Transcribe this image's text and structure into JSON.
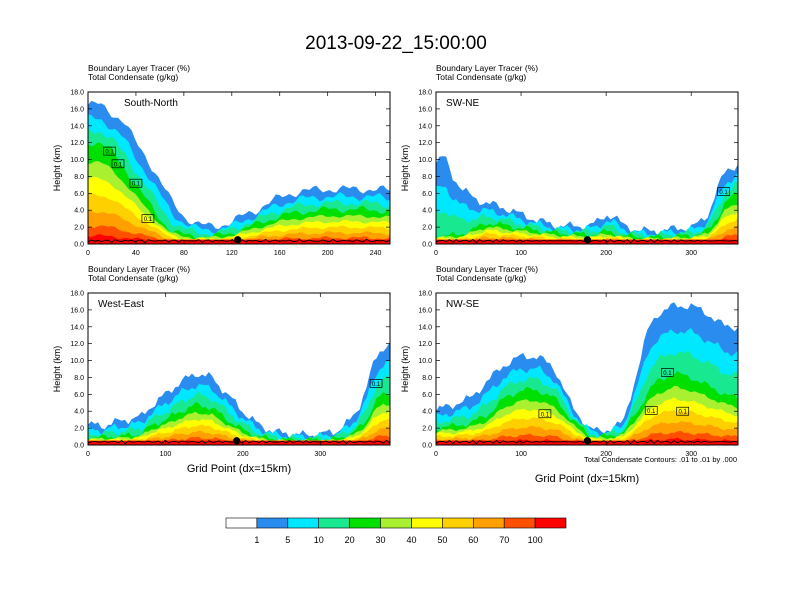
{
  "main_title": "2013-09-22_15:00:00",
  "panel_header_line1": "Boundary Layer Tracer   (%)",
  "panel_header_line2": "Total Condensate   (g/kg)",
  "y_axis_label": "Height (km)",
  "x_axis_label": "Grid Point (dx=15km)",
  "contour_note": "Total Condensate Contours: .01 to .01 by .000",
  "colors": {
    "white": "#ffffff",
    "blue": "#2b8cf0",
    "cyan": "#00e8ff",
    "seagreen": "#18e890",
    "green": "#00e000",
    "lime": "#a8f030",
    "yellow": "#ffff00",
    "gold": "#ffd000",
    "orange": "#ffa000",
    "redorange": "#ff5000",
    "red": "#ff0000"
  },
  "chart_data": [
    {
      "type": "heatmap",
      "panel_label": "South-North",
      "x_ticks": [
        "0",
        "40",
        "80",
        "120",
        "160",
        "200",
        "240"
      ],
      "x_tick_values": [
        0,
        40,
        80,
        120,
        160,
        200,
        240
      ],
      "xlim": [
        0,
        252
      ],
      "y_ticks": [
        "0.0",
        "2.0",
        "4.0",
        "6.0",
        "8.0",
        "10.0",
        "12.0",
        "14.0",
        "16.0",
        "18.0"
      ],
      "ylim": [
        0,
        18
      ],
      "marker_x": 125,
      "contour_labels": [
        {
          "text": "0.1",
          "x": 18,
          "y": 11
        },
        {
          "text": "0.1",
          "x": 25,
          "y": 9.5
        },
        {
          "text": "0.1",
          "x": 40,
          "y": 7.2
        },
        {
          "text": "0.1",
          "x": 50,
          "y": 3
        }
      ],
      "tracer_profile": {
        "x": [
          0,
          10,
          20,
          30,
          40,
          50,
          60,
          70,
          80,
          90,
          100,
          110,
          120,
          130,
          140,
          150,
          160,
          170,
          180,
          190,
          200,
          210,
          220,
          230,
          240,
          252
        ],
        "top": [
          16.5,
          16.5,
          15.5,
          14.5,
          12,
          10,
          7.5,
          5,
          3.3,
          2.4,
          2.1,
          2.2,
          2.6,
          3.4,
          4,
          4.8,
          5.5,
          6,
          6.3,
          6.4,
          6.5,
          6.5,
          6.5,
          6.5,
          6.5,
          6.3
        ],
        "core": [
          12,
          12,
          11,
          9,
          7,
          5,
          3,
          1.5,
          1.1,
          0.9,
          0.9,
          1,
          1.3,
          1.8,
          2.3,
          2.8,
          3.3,
          3.6,
          3.8,
          4,
          4.1,
          4.1,
          4.1,
          4.1,
          4,
          3.9
        ]
      }
    },
    {
      "type": "heatmap",
      "panel_label": "SW-NE",
      "x_ticks": [
        "0",
        "100",
        "200",
        "300"
      ],
      "x_tick_values": [
        0,
        100,
        200,
        300
      ],
      "xlim": [
        0,
        355
      ],
      "y_ticks": [
        "0.0",
        "2.0",
        "4.0",
        "6.0",
        "8.0",
        "10.0",
        "12.0",
        "14.0",
        "16.0",
        "18.0"
      ],
      "ylim": [
        0,
        18
      ],
      "marker_x": 178,
      "contour_labels": [
        {
          "text": "0.1",
          "x": 338,
          "y": 6.2
        }
      ],
      "tracer_profile": {
        "x": [
          0,
          10,
          20,
          30,
          40,
          50,
          60,
          70,
          80,
          100,
          120,
          140,
          160,
          180,
          190,
          200,
          210,
          220,
          240,
          260,
          280,
          300,
          310,
          320,
          330,
          340,
          355
        ],
        "top": [
          9.5,
          10.5,
          8,
          6.5,
          5.8,
          5.2,
          4.8,
          4.6,
          4.3,
          3.5,
          2.8,
          2.2,
          2.1,
          2.2,
          2.6,
          3.5,
          3.2,
          2.2,
          1.6,
          1.5,
          1.8,
          2,
          2.5,
          3.5,
          6.5,
          8.5,
          9.5
        ],
        "core": [
          1,
          1,
          1,
          1.2,
          1.6,
          2,
          2.5,
          2.4,
          2.2,
          1.9,
          1.6,
          1.3,
          1.2,
          1.1,
          1.2,
          1.5,
          1.3,
          1,
          0.8,
          0.8,
          0.9,
          1,
          1.2,
          1.6,
          3,
          5,
          6
        ]
      }
    },
    {
      "type": "heatmap",
      "panel_label": "West-East",
      "x_ticks": [
        "0",
        "100",
        "200",
        "300"
      ],
      "x_tick_values": [
        0,
        100,
        200,
        300
      ],
      "xlim": [
        0,
        390
      ],
      "y_ticks": [
        "0.0",
        "2.0",
        "4.0",
        "6.0",
        "8.0",
        "10.0",
        "12.0",
        "14.0",
        "16.0",
        "18.0"
      ],
      "ylim": [
        0,
        18
      ],
      "marker_x": 192,
      "contour_labels": [
        {
          "text": "0.1",
          "x": 372,
          "y": 7.3
        }
      ],
      "tracer_profile": {
        "x": [
          0,
          10,
          20,
          30,
          40,
          50,
          60,
          70,
          80,
          100,
          120,
          140,
          160,
          180,
          200,
          220,
          240,
          260,
          280,
          300,
          320,
          340,
          350,
          360,
          370,
          380,
          390
        ],
        "top": [
          2.4,
          2.4,
          2.2,
          2.6,
          2.8,
          3,
          3.2,
          3.4,
          4.5,
          6,
          7.5,
          8.5,
          8,
          6,
          4,
          2.4,
          1.6,
          1.3,
          1.2,
          1.3,
          1.6,
          3,
          4.5,
          7,
          10,
          11.5,
          12
        ],
        "core": [
          0.9,
          0.9,
          0.9,
          1,
          1,
          1.1,
          1.2,
          1.4,
          2.2,
          3,
          4,
          4.8,
          4.4,
          3,
          1.8,
          1,
          0.7,
          0.6,
          0.6,
          0.6,
          0.7,
          1.3,
          2,
          3,
          5,
          6,
          6
        ]
      }
    },
    {
      "type": "heatmap",
      "panel_label": "NW-SE",
      "x_ticks": [
        "0",
        "100",
        "200",
        "300"
      ],
      "x_tick_values": [
        0,
        100,
        200,
        300
      ],
      "xlim": [
        0,
        355
      ],
      "y_ticks": [
        "0.0",
        "2.0",
        "4.0",
        "6.0",
        "8.0",
        "10.0",
        "12.0",
        "14.0",
        "16.0",
        "18.0"
      ],
      "ylim": [
        0,
        18
      ],
      "marker_x": 178,
      "contour_labels": [
        {
          "text": "0.1",
          "x": 128,
          "y": 3.7
        },
        {
          "text": "0.1",
          "x": 253,
          "y": 4.1
        },
        {
          "text": "0.1",
          "x": 272,
          "y": 8.6
        },
        {
          "text": "0.1",
          "x": 290,
          "y": 4
        }
      ],
      "tracer_profile": {
        "x": [
          0,
          10,
          20,
          40,
          60,
          80,
          100,
          120,
          140,
          160,
          180,
          190,
          200,
          210,
          220,
          240,
          250,
          260,
          280,
          300,
          320,
          340,
          355
        ],
        "top": [
          4,
          4.5,
          4.8,
          5.5,
          7.5,
          9.5,
          10.5,
          10.5,
          9,
          4.5,
          2,
          1.6,
          1.8,
          2.2,
          2.6,
          10,
          14,
          15.5,
          16.5,
          16.5,
          15.5,
          14,
          14
        ],
        "core": [
          2,
          2.2,
          2.2,
          2.6,
          3.5,
          5.5,
          6.5,
          6.5,
          5.5,
          3,
          1.2,
          1,
          1,
          1.2,
          1.5,
          4.5,
          6.5,
          7.5,
          8.5,
          8,
          7,
          6,
          5.5
        ]
      }
    }
  ],
  "legend": {
    "tick_labels": [
      "1",
      "5",
      "10",
      "20",
      "30",
      "40",
      "50",
      "60",
      "70",
      "100"
    ],
    "colors": [
      "#ffffff",
      "#2b8cf0",
      "#00e8ff",
      "#18e890",
      "#00e000",
      "#a8f030",
      "#ffff00",
      "#ffd000",
      "#ffa000",
      "#ff5000",
      "#ff0000"
    ]
  }
}
